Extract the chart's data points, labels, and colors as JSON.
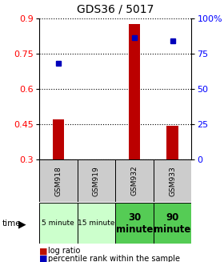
{
  "title": "GDS36 / 5017",
  "samples": [
    "GSM918",
    "GSM919",
    "GSM932",
    "GSM933"
  ],
  "time_labels": [
    "5 minute",
    "15 minute",
    "30\nminute",
    "90\nminute"
  ],
  "time_bg_colors": [
    "#ccffcc",
    "#ccffcc",
    "#55cc55",
    "#55cc55"
  ],
  "log_ratio": [
    0.47,
    0.3,
    0.875,
    0.445
  ],
  "percentile_rank_pct": [
    68.0,
    null,
    86.5,
    84.0
  ],
  "ylim": [
    0.3,
    0.9
  ],
  "y_ticks_left": [
    0.3,
    0.45,
    0.6,
    0.75,
    0.9
  ],
  "y_ticks_right": [
    0,
    25,
    50,
    75,
    100
  ],
  "bar_color": "#bb0000",
  "dot_color": "#0000bb",
  "bar_bottom": 0.3,
  "bar_width": 0.3,
  "sample_bg_color": "#cccccc",
  "legend_bar_color": "#bb1100",
  "legend_dot_color": "#0000bb"
}
